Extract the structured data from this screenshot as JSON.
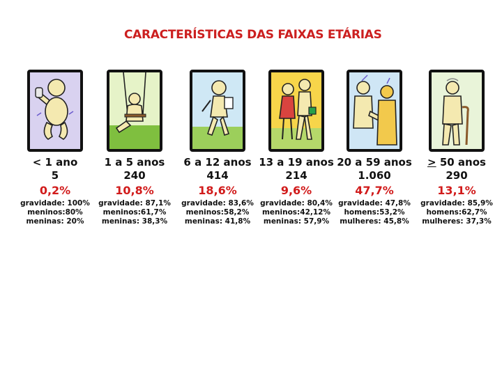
{
  "title": "CARACTERÍSTICAS DAS FAIXAS ETÁRIAS",
  "colors": {
    "title": "#cc1f1f",
    "percent": "#d11b1b",
    "frame": "#111111",
    "figure_fill": "#f4e9b0"
  },
  "groups": [
    {
      "icon": "baby-icon",
      "range": "< 1 ano",
      "count": "5",
      "percent": "0,2%",
      "details": [
        "gravidade: 100%",
        "meninos:80%",
        "meninas: 20%"
      ]
    },
    {
      "icon": "child-swing-icon",
      "range": "1 a 5 anos",
      "count": "240",
      "percent": "10,8%",
      "details": [
        "gravidade: 87,1%",
        "meninos:61,7%",
        "meninas: 38,3%"
      ]
    },
    {
      "icon": "schoolchild-icon",
      "range": "6 a 12 anos",
      "count": "414",
      "percent": "18,6%",
      "details": [
        "gravidade: 83,6%",
        "meninos:58,2%",
        "meninas: 41,8%"
      ]
    },
    {
      "icon": "teenagers-icon",
      "range": "13 a 19 anos",
      "count": "214",
      "percent": "9,6%",
      "details": [
        "gravidade: 80,4%",
        "meninos:42,12%",
        "meninas: 57,9%"
      ]
    },
    {
      "icon": "adults-handshake-icon",
      "range": "20 a 59 anos",
      "count": "1.060",
      "percent": "47,7%",
      "details": [
        "gravidade: 47,8%",
        "homens:53,2%",
        "mulheres: 45,8%"
      ]
    },
    {
      "icon": "elderly-cane-icon",
      "range_prefix": ">",
      "range": "50 anos",
      "count": "290",
      "percent": "13,1%",
      "details": [
        "gravidade: 85,9%",
        "homens:62,7%",
        "mulheres: 37,3%"
      ]
    }
  ]
}
